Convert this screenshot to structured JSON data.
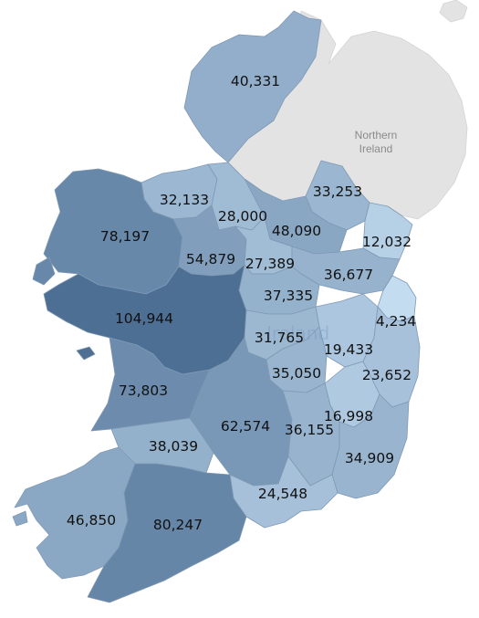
{
  "northern_ireland": {
    "label_line1": "Northern",
    "label_line2": "Ireland",
    "fill": "#e3e3e3"
  },
  "ghost_country_label": "Ireland",
  "color_scale": {
    "low": "#c3dcf0",
    "high": "#4d6f94"
  },
  "counties": [
    {
      "id": "donegal",
      "value": 40331
    },
    {
      "id": "sligo",
      "value": 32133
    },
    {
      "id": "leitrim",
      "value": 28000
    },
    {
      "id": "monaghan",
      "value": 33253
    },
    {
      "id": "cavan",
      "value": 48090
    },
    {
      "id": "louth",
      "value": 12032
    },
    {
      "id": "mayo",
      "value": 78197
    },
    {
      "id": "roscommon",
      "value": 54879
    },
    {
      "id": "longford",
      "value": 27389
    },
    {
      "id": "meath",
      "value": 36677
    },
    {
      "id": "westmeath",
      "value": 37335
    },
    {
      "id": "dublin",
      "value": 4234
    },
    {
      "id": "galway",
      "value": 104944
    },
    {
      "id": "offaly",
      "value": 31765
    },
    {
      "id": "kildare",
      "value": 19433
    },
    {
      "id": "laois",
      "value": 35050
    },
    {
      "id": "wicklow",
      "value": 23652
    },
    {
      "id": "clare",
      "value": 73803
    },
    {
      "id": "carlow",
      "value": 16998
    },
    {
      "id": "tipperary",
      "value": 62574
    },
    {
      "id": "kilkenny",
      "value": 36155
    },
    {
      "id": "limerick",
      "value": 38039
    },
    {
      "id": "wexford",
      "value": 34909
    },
    {
      "id": "waterford",
      "value": 24548
    },
    {
      "id": "kerry",
      "value": 46850
    },
    {
      "id": "cork",
      "value": 80247
    }
  ]
}
